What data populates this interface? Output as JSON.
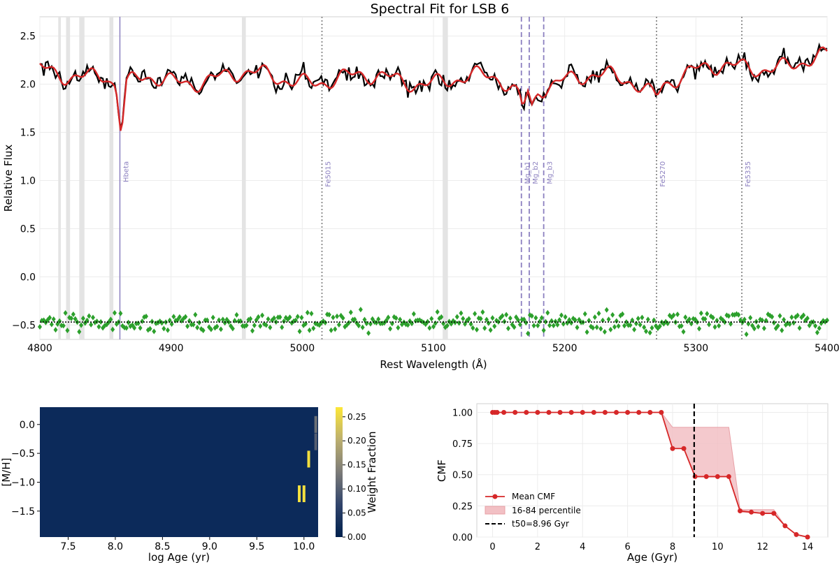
{
  "figure_title": "Spectral Fit for LSB 6",
  "chart_data": [
    {
      "type": "line",
      "title": "Spectral Fit for LSB 6",
      "xlabel": "Rest Wavelength (Å)",
      "ylabel": "Relative Flux",
      "xlim": [
        4800,
        5400
      ],
      "ylim": [
        -0.65,
        2.7
      ],
      "xticks": [
        4800,
        4900,
        5000,
        5100,
        5200,
        5300,
        5400
      ],
      "yticks": [
        -0.5,
        0.0,
        0.5,
        1.0,
        1.5,
        2.0,
        2.5
      ],
      "ytick_labels": [
        "−0.5",
        "0.0",
        "0.5",
        "1.0",
        "1.5",
        "2.0",
        "2.5"
      ],
      "grid": true,
      "colors": {
        "data": "#000000",
        "model": "#d62728",
        "residuals": "#2ca02c",
        "lines": "#8c80c0",
        "masked": "#e4e4e4"
      },
      "continuum_anchors": [
        [
          4800,
          2.15
        ],
        [
          4830,
          2.12
        ],
        [
          4850,
          2.1
        ],
        [
          4858,
          1.95
        ],
        [
          4862,
          1.45
        ],
        [
          4866,
          1.95
        ],
        [
          4880,
          2.05
        ],
        [
          4900,
          2.05
        ],
        [
          4950,
          2.08
        ],
        [
          5000,
          2.06
        ],
        [
          5050,
          2.05
        ],
        [
          5100,
          2.05
        ],
        [
          5150,
          2.04
        ],
        [
          5165,
          1.9
        ],
        [
          5168,
          1.78
        ],
        [
          5172,
          1.95
        ],
        [
          5175,
          1.8
        ],
        [
          5180,
          2.0
        ],
        [
          5200,
          2.05
        ],
        [
          5250,
          2.05
        ],
        [
          5270,
          1.92
        ],
        [
          5275,
          2.05
        ],
        [
          5300,
          2.12
        ],
        [
          5350,
          2.2
        ],
        [
          5400,
          2.25
        ]
      ],
      "residual_level": -0.47,
      "masked_regions": [
        [
          4814,
          4816
        ],
        [
          4820,
          4823
        ],
        [
          4830,
          4834
        ],
        [
          4853,
          4856
        ],
        [
          4954,
          4957
        ],
        [
          5107,
          5111
        ]
      ],
      "spectral_lines": [
        {
          "name": "Hbeta",
          "x": 4861,
          "style": "solid"
        },
        {
          "name": "Fe5015",
          "x": 5015,
          "style": "dotted"
        },
        {
          "name": "Mg_b1",
          "x": 5167,
          "style": "dashed"
        },
        {
          "name": "Mg_b2",
          "x": 5173,
          "style": "dashed"
        },
        {
          "name": "Mg_b3",
          "x": 5184,
          "style": "dashed"
        },
        {
          "name": "Fe5270",
          "x": 5270,
          "style": "dotted"
        },
        {
          "name": "Fe5335",
          "x": 5335,
          "style": "dotted"
        }
      ]
    },
    {
      "type": "heatmap",
      "xlabel": "log Age (yr)",
      "ylabel": "[M/H]",
      "xlim": [
        7.2,
        10.15
      ],
      "ylim": [
        -1.95,
        0.3
      ],
      "xticks": [
        7.5,
        8.0,
        8.5,
        9.0,
        9.5,
        10.0
      ],
      "xtick_labels": [
        "7.5",
        "8.0",
        "8.5",
        "9.0",
        "9.5",
        "10.0"
      ],
      "yticks": [
        -1.5,
        -1.0,
        -0.5,
        0.0
      ],
      "ytick_labels": [
        "−1.5",
        "−1.0",
        "−0.5",
        "0.0"
      ],
      "colorbar_label": "Weight Fraction",
      "colorbar_ticks": [
        0.0,
        0.05,
        0.1,
        0.15,
        0.2,
        0.25
      ],
      "colorbar_tick_labels": [
        "0.00",
        "0.05",
        "0.10",
        "0.15",
        "0.20",
        "0.25"
      ],
      "colorbar_range": [
        0.0,
        0.27
      ],
      "background_color": "#0c2a5a",
      "cells": [
        {
          "log_age": 10.125,
          "mh": 0.0,
          "weight": 0.12
        },
        {
          "log_age": 10.125,
          "mh": -0.3,
          "weight": 0.1
        },
        {
          "log_age": 10.05,
          "mh": -0.6,
          "weight": 0.26
        },
        {
          "log_age": 9.95,
          "mh": -1.2,
          "weight": 0.26
        },
        {
          "log_age": 10.0,
          "mh": -1.2,
          "weight": 0.26
        }
      ]
    },
    {
      "type": "line",
      "xlabel": "Age (Gyr)",
      "ylabel": "CMF",
      "xlim": [
        -0.7,
        14.9
      ],
      "ylim": [
        0.0,
        1.07
      ],
      "xticks": [
        0,
        2,
        4,
        6,
        8,
        10,
        12,
        14
      ],
      "yticks": [
        0.0,
        0.25,
        0.5,
        0.75,
        1.0
      ],
      "ytick_labels": [
        "0.00",
        "0.25",
        "0.50",
        "0.75",
        "1.00"
      ],
      "grid": true,
      "legend_position": "lower-left",
      "series": [
        {
          "name": "Mean CMF",
          "color": "#d62728",
          "x": [
            0.0,
            0.1,
            0.2,
            0.5,
            1.0,
            1.5,
            2.0,
            2.5,
            3.0,
            3.5,
            4.0,
            4.5,
            5.0,
            5.5,
            6.0,
            6.5,
            7.0,
            7.5,
            8.0,
            8.5,
            9.0,
            9.5,
            10.0,
            10.5,
            11.0,
            11.5,
            12.0,
            12.5,
            13.0,
            13.5,
            14.0
          ],
          "y": [
            1.0,
            1.0,
            1.0,
            1.0,
            1.0,
            1.0,
            1.0,
            1.0,
            1.0,
            1.0,
            1.0,
            1.0,
            1.0,
            1.0,
            1.0,
            1.0,
            1.0,
            1.0,
            0.71,
            0.71,
            0.485,
            0.485,
            0.485,
            0.485,
            0.21,
            0.2,
            0.19,
            0.19,
            0.09,
            0.02,
            0.0
          ]
        }
      ],
      "band": {
        "name": "16-84 percentile",
        "color": "#f2c0c4",
        "points": [
          [
            7.5,
            1.0,
            1.0
          ],
          [
            8.0,
            0.88,
            0.71
          ],
          [
            8.5,
            0.88,
            0.71
          ],
          [
            9.0,
            0.88,
            0.485
          ],
          [
            10.5,
            0.88,
            0.485
          ],
          [
            11.0,
            0.22,
            0.2
          ],
          [
            12.0,
            0.22,
            0.19
          ],
          [
            12.5,
            0.22,
            0.19
          ],
          [
            13.0,
            0.09,
            0.09
          ],
          [
            13.5,
            0.02,
            0.02
          ],
          [
            14.0,
            0.0,
            0.0
          ]
        ]
      },
      "t50": {
        "name": "t50=8.96 Gyr",
        "value": 8.96,
        "color": "#000000"
      }
    }
  ]
}
